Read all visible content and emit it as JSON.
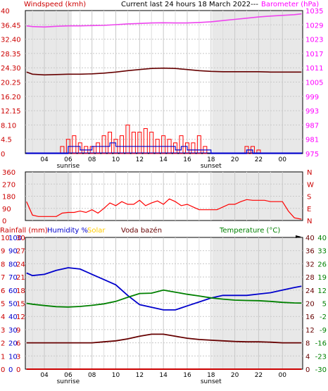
{
  "header": {
    "left_title": "Windspeed (kmh)",
    "center_title": "Current last 24 hours 18 March 2022---",
    "right_title": "Barometer (hPa)"
  },
  "colors": {
    "windspeed": "#cc0000",
    "gust": "#ff0000",
    "wind_avg": "#0000cc",
    "barometer_axis": "#ff00ff",
    "barometer_line": "#ee44ee",
    "dark_line": "#660000",
    "direction": "#ff0000",
    "humidity": "#0000cc",
    "temperature": "#008000",
    "rain": "#cc0000",
    "solar": "#ffcc00",
    "grid": "#c8c8c8",
    "night": "#e8e8e8"
  },
  "time_axis": {
    "hour_labels": [
      "04",
      "06",
      "08",
      "10",
      "12",
      "14",
      "16",
      "18",
      "20",
      "22",
      "00"
    ],
    "sunrise_label": "sunrise",
    "sunset_label": "sunset"
  },
  "panel_wind": {
    "left_ticks": [
      "40",
      "36.45",
      "32.40",
      "28.35",
      "24.30",
      "20.25",
      "16.20",
      "12.15",
      "8.10",
      "4.5",
      "0"
    ],
    "left_tick_numbers": [
      "40",
      "36.45",
      "32.40",
      "28.35",
      "24.30",
      "20.25",
      "16.20",
      "12.15",
      "8.10",
      "4.5",
      "0"
    ],
    "right_ticks": [
      "1035",
      "1029",
      "1023",
      "1017",
      "1011",
      "1005",
      "999",
      "993",
      "987",
      "981",
      "975"
    ]
  },
  "panel_direction": {
    "left_ticks": [
      "360",
      "270",
      "180",
      "90",
      "0"
    ],
    "right_ticks": [
      "N",
      "W",
      "S",
      "E",
      "N"
    ]
  },
  "panel_bottom": {
    "labels": {
      "rainfall": "Rainfall (mm)",
      "humidity": "Humidity %",
      "solar": "Solar",
      "pool": "Voda bazén",
      "temperature": "Temperature (°C)"
    },
    "rain_ticks": [
      "10",
      "9",
      "8",
      "7",
      "6",
      "5",
      "4",
      "3",
      "2",
      "1",
      "0"
    ],
    "humidity_ticks": [
      "100",
      "90",
      "80",
      "70",
      "60",
      "50",
      "40",
      "30",
      "20",
      "10",
      "0"
    ],
    "solar_ticks": [
      "30",
      "27",
      "24",
      "21",
      "18",
      "15",
      "12",
      "9",
      "6",
      "3",
      "0"
    ],
    "pool_ticks": [
      "40",
      "36",
      "32",
      "28",
      "24",
      "20",
      "16",
      "12",
      "8",
      "4",
      "0"
    ],
    "temp_ticks": [
      "40",
      "33",
      "26",
      "19",
      "12",
      "5",
      "-2",
      "-9",
      "-16",
      "-23",
      "-30"
    ]
  },
  "chart_data": [
    {
      "type": "line",
      "title": "Current last 24 hours 18 March 2022---",
      "ylabel": "Windspeed (kmh)",
      "y2label": "Barometer (hPa)",
      "ylim": [
        0,
        40
      ],
      "y2lim": [
        975,
        1035
      ],
      "x_hours": [
        2.5,
        3,
        4,
        5,
        6,
        7,
        8,
        9,
        10,
        11,
        12,
        13,
        14,
        15,
        16,
        17,
        18,
        19,
        20,
        21,
        22,
        23,
        24,
        25,
        25.6
      ],
      "series": [
        {
          "name": "Barometer (hPa)",
          "axis": "right",
          "values": [
            1028.6,
            1028.3,
            1028.1,
            1028.4,
            1028.6,
            1028.6,
            1028.7,
            1028.8,
            1029.1,
            1029.4,
            1029.6,
            1029.8,
            1029.9,
            1029.8,
            1029.8,
            1030.0,
            1030.3,
            1030.8,
            1031.3,
            1031.8,
            1032.3,
            1032.7,
            1033.0,
            1033.3,
            1033.6
          ]
        },
        {
          "axis": "left",
          "values": [
            22.8,
            22.2,
            22.0,
            22.1,
            22.2,
            22.2,
            22.3,
            22.5,
            22.8,
            23.2,
            23.5,
            23.8,
            23.9,
            23.8,
            23.5,
            23.2,
            23.0,
            22.9,
            22.9,
            22.9,
            22.9,
            22.8,
            22.8,
            22.8,
            22.8
          ]
        }
      ],
      "wind_x_hours": [
        2.5,
        5,
        5.5,
        6,
        6.5,
        7,
        7.5,
        8,
        8.5,
        9,
        9.5,
        10,
        10.5,
        11,
        11.5,
        12,
        12.5,
        13,
        13.5,
        14,
        14.5,
        15,
        15.5,
        16,
        16.5,
        17,
        17.5,
        18,
        18.5,
        19,
        19.5,
        20,
        20.5,
        21,
        21.5,
        22,
        25.6
      ],
      "wind_series": [
        {
          "name": "Gust",
          "values": [
            0,
            0,
            2,
            4,
            5,
            3,
            2,
            2,
            3,
            5,
            6,
            4,
            5,
            8,
            6,
            6,
            7,
            6,
            4,
            5,
            4,
            3,
            5,
            3,
            3,
            5,
            2,
            0,
            0,
            0,
            0,
            0,
            0,
            2,
            2,
            1,
            0
          ]
        },
        {
          "name": "Average",
          "values": [
            0,
            0,
            0,
            2,
            2,
            1,
            1,
            2,
            2,
            2,
            3,
            2,
            2,
            2,
            2,
            2,
            2,
            2,
            2,
            2,
            2,
            1,
            2,
            1,
            1,
            1,
            1,
            0,
            0,
            0,
            0,
            0,
            0,
            1,
            0,
            0,
            0
          ]
        }
      ]
    },
    {
      "type": "line",
      "ylim": [
        0,
        360
      ],
      "ticks": [
        "360",
        "270",
        "180",
        "90",
        "0"
      ],
      "x_hours": [
        2.5,
        3,
        3.5,
        4,
        5,
        5.5,
        6,
        6.5,
        7,
        7.5,
        8,
        8.5,
        9,
        9.5,
        10,
        10.5,
        11,
        11.5,
        12,
        12.5,
        13,
        13.5,
        14,
        14.5,
        15,
        15.5,
        16,
        16.5,
        17,
        17.5,
        18,
        18.5,
        19,
        19.5,
        20,
        20.5,
        21,
        21.5,
        22,
        22.5,
        23,
        23.5,
        24,
        24.5,
        25,
        25.6
      ],
      "series": [
        {
          "name": "Wind direction",
          "values": [
            140,
            40,
            30,
            30,
            30,
            55,
            60,
            60,
            70,
            60,
            80,
            55,
            90,
            130,
            110,
            140,
            120,
            120,
            150,
            110,
            130,
            145,
            120,
            160,
            140,
            110,
            120,
            100,
            80,
            80,
            80,
            80,
            100,
            120,
            120,
            140,
            155,
            150,
            150,
            150,
            140,
            140,
            140,
            70,
            20,
            10
          ]
        }
      ]
    },
    {
      "type": "line",
      "x_hours": [
        2.5,
        3,
        4,
        5,
        6,
        7,
        8,
        9,
        10,
        11,
        12,
        13,
        14,
        15,
        16,
        17,
        18,
        19,
        20,
        21,
        22,
        23,
        24,
        25,
        25.6
      ],
      "series": [
        {
          "name": "Humidity %",
          "axis": "humidity",
          "ylim": [
            0,
            100
          ],
          "values": [
            73,
            71,
            72,
            75,
            77,
            76,
            72,
            68,
            64,
            56,
            49,
            47,
            45,
            45,
            48,
            51,
            54,
            56,
            56,
            56,
            57,
            58,
            60,
            62,
            63
          ]
        },
        {
          "name": "Temperature (°C)",
          "axis": "temperature",
          "ylim": [
            -30,
            40
          ],
          "values": [
            5.0,
            4.5,
            3.8,
            3.2,
            3.0,
            3.3,
            3.9,
            4.7,
            6.0,
            8.2,
            10.2,
            10.4,
            12.0,
            10.9,
            9.8,
            8.9,
            7.9,
            7.2,
            6.7,
            6.5,
            6.4,
            6.0,
            5.5,
            5.2,
            5.1
          ]
        },
        {
          "axis": "pool",
          "ylim": [
            0,
            40
          ],
          "values": [
            8.0,
            8.0,
            8.0,
            8.0,
            8.0,
            8.0,
            8.0,
            8.3,
            8.6,
            9.2,
            10.0,
            10.6,
            10.6,
            10.0,
            9.4,
            9.0,
            8.8,
            8.6,
            8.4,
            8.3,
            8.3,
            8.2,
            8.0,
            8.0,
            8.0
          ]
        },
        {
          "name": "Rainfall (mm)",
          "axis": "rain",
          "ylim": [
            0,
            10
          ],
          "values": [
            0,
            0,
            0,
            0,
            0,
            0,
            0,
            0,
            0,
            0,
            0,
            0,
            0,
            0,
            0,
            0,
            0,
            0,
            0,
            0,
            0,
            0,
            0,
            0,
            0
          ]
        }
      ]
    }
  ]
}
